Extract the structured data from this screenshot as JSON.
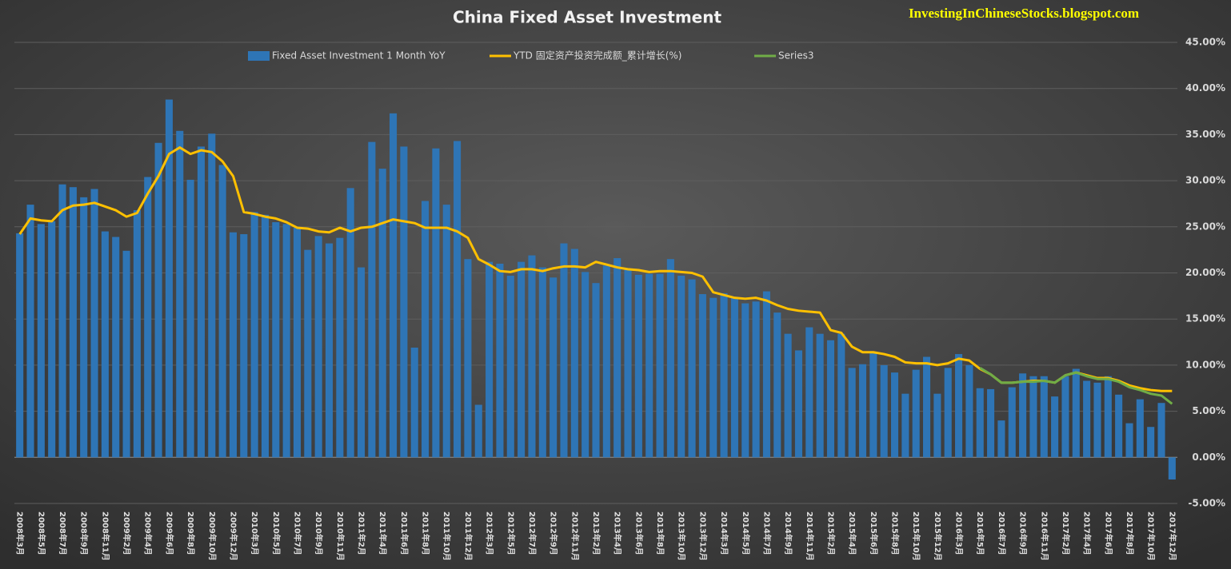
{
  "chart_data": {
    "type": "bar",
    "title": "China Fixed Asset Investment",
    "annotations": [
      "InvestingInChineseStocks.blogspot.com"
    ],
    "legend": "top",
    "grid": true,
    "ylim": [
      -5,
      45
    ],
    "yticks": [
      {
        "value": -5,
        "label": "-5.00%"
      },
      {
        "value": 0,
        "label": "0.00%"
      },
      {
        "value": 5,
        "label": "5.00%"
      },
      {
        "value": 10,
        "label": "10.00%"
      },
      {
        "value": 15,
        "label": "15.00%"
      },
      {
        "value": 20,
        "label": "20.00%"
      },
      {
        "value": 25,
        "label": "25.00%"
      },
      {
        "value": 30,
        "label": "30.00%"
      },
      {
        "value": 35,
        "label": "35.00%"
      },
      {
        "value": 40,
        "label": "40.00%"
      },
      {
        "value": 45,
        "label": "45.00%"
      }
    ],
    "categories": [
      "2008年3月",
      null,
      "2008年5月",
      null,
      "2008年7月",
      null,
      "2008年9月",
      null,
      "2008年11月",
      null,
      "2009年2月",
      null,
      "2009年4月",
      null,
      "2009年6月",
      null,
      "2009年8月",
      null,
      "2009年10月",
      null,
      "2009年12月",
      null,
      "2010年3月",
      null,
      "2010年5月",
      null,
      "2010年7月",
      null,
      "2010年9月",
      null,
      "2010年11月",
      null,
      "2011年2月",
      null,
      "2011年4月",
      null,
      "2011年6月",
      null,
      "2011年8月",
      null,
      "2011年10月",
      null,
      "2011年12月",
      null,
      "2012年3月",
      null,
      "2012年5月",
      null,
      "2012年7月",
      null,
      "2012年9月",
      null,
      "2012年11月",
      null,
      "2013年2月",
      null,
      "2013年4月",
      null,
      "2013年6月",
      null,
      "2013年8月",
      null,
      "2013年10月",
      null,
      "2013年12月",
      null,
      "2014年3月",
      null,
      "2014年5月",
      null,
      "2014年7月",
      null,
      "2014年9月",
      null,
      "2014年11月",
      null,
      "2015年2月",
      null,
      "2015年4月",
      null,
      "2015年6月",
      null,
      "2015年8月",
      null,
      "2015年10月",
      null,
      "2015年12月",
      null,
      "2016年3月",
      null,
      "2016年5月",
      null,
      "2016年7月",
      null,
      "2016年9月",
      null,
      "2016年11月",
      null,
      "2017年2月",
      null,
      "2017年4月",
      null,
      "2017年6月",
      null,
      "2017年8月",
      null,
      "2017年10月",
      null,
      "2017年12月"
    ],
    "series": [
      {
        "name": "Fixed Asset Investment 1 Month YoY",
        "type": "bar",
        "color": "#2e75b6",
        "values": [
          24.3,
          27.4,
          25.3,
          25.6,
          29.6,
          29.3,
          28.2,
          29.1,
          24.5,
          23.9,
          22.4,
          26.8,
          30.4,
          34.1,
          38.8,
          35.4,
          30.1,
          33.7,
          35.1,
          31.7,
          24.4,
          24.2,
          26.6,
          26.3,
          25.5,
          25.3,
          24.9,
          22.5,
          24.0,
          23.2,
          23.8,
          29.2,
          20.6,
          34.2,
          31.3,
          37.3,
          33.7,
          11.9,
          27.8,
          33.5,
          27.4,
          34.3,
          21.5,
          5.7,
          21.2,
          21.0,
          19.7,
          21.2,
          21.9,
          20.6,
          19.5,
          23.2,
          22.6,
          20.1,
          18.9,
          20.8,
          21.6,
          20.4,
          19.8,
          19.9,
          19.9,
          21.5,
          19.7,
          19.3,
          17.7,
          17.3,
          17.8,
          17.3,
          16.7,
          16.9,
          18.0,
          15.7,
          13.4,
          11.6,
          14.1,
          13.4,
          12.7,
          13.4,
          9.7,
          10.1,
          11.3,
          10.0,
          9.2,
          6.9,
          9.5,
          10.9,
          6.9,
          9.7,
          11.2,
          10.0,
          7.5,
          7.4,
          4.0,
          7.6,
          9.1,
          8.8,
          8.8,
          6.6,
          8.8,
          9.6,
          8.3,
          8.1,
          8.8,
          6.8,
          3.7,
          6.3,
          3.3,
          5.9,
          -2.4
        ]
      },
      {
        "name": "YTD 固定资产投资完成额_累计增长(%)",
        "type": "line",
        "color": "#ffc000",
        "values": [
          24.2,
          25.9,
          25.7,
          25.6,
          26.8,
          27.3,
          27.4,
          27.6,
          27.2,
          26.8,
          26.1,
          26.5,
          28.6,
          30.5,
          32.9,
          33.6,
          32.9,
          33.3,
          33.1,
          32.1,
          30.5,
          26.6,
          26.4,
          26.1,
          25.9,
          25.5,
          24.9,
          24.8,
          24.5,
          24.4,
          24.9,
          24.5,
          24.9,
          25.0,
          25.4,
          25.8,
          25.6,
          25.4,
          24.9,
          24.9,
          24.9,
          24.5,
          23.8,
          21.5,
          20.9,
          20.2,
          20.1,
          20.4,
          20.4,
          20.2,
          20.5,
          20.7,
          20.7,
          20.6,
          21.2,
          20.9,
          20.6,
          20.4,
          20.3,
          20.1,
          20.2,
          20.2,
          20.1,
          20.0,
          19.6,
          17.9,
          17.6,
          17.3,
          17.2,
          17.3,
          17.0,
          16.5,
          16.1,
          15.9,
          15.8,
          15.7,
          13.8,
          13.5,
          12.0,
          11.4,
          11.4,
          11.2,
          10.9,
          10.3,
          10.2,
          10.2,
          10.0,
          10.2,
          10.7,
          10.5,
          9.6,
          9.0,
          8.1,
          8.1,
          8.2,
          8.3,
          8.3,
          8.1,
          8.9,
          9.2,
          8.9,
          8.6,
          8.6,
          8.3,
          7.8,
          7.5,
          7.3,
          7.2,
          7.2
        ]
      },
      {
        "name": "Series3",
        "type": "line",
        "color": "#70ad47",
        "values": [
          null,
          null,
          null,
          null,
          null,
          null,
          null,
          null,
          null,
          null,
          null,
          null,
          null,
          null,
          null,
          null,
          null,
          null,
          null,
          null,
          null,
          null,
          null,
          null,
          null,
          null,
          null,
          null,
          null,
          null,
          null,
          null,
          null,
          null,
          null,
          null,
          null,
          null,
          null,
          null,
          null,
          null,
          null,
          null,
          null,
          null,
          null,
          null,
          null,
          null,
          null,
          null,
          null,
          null,
          null,
          null,
          null,
          null,
          null,
          null,
          null,
          null,
          null,
          null,
          null,
          null,
          null,
          null,
          null,
          null,
          null,
          null,
          null,
          null,
          null,
          null,
          null,
          null,
          null,
          null,
          null,
          null,
          null,
          null,
          null,
          null,
          null,
          null,
          null,
          null,
          9.7,
          9.0,
          8.1,
          8.1,
          8.2,
          8.2,
          8.3,
          8.1,
          8.9,
          9.2,
          8.8,
          8.5,
          8.5,
          8.2,
          7.6,
          7.3,
          6.9,
          6.7,
          5.8
        ]
      }
    ]
  }
}
